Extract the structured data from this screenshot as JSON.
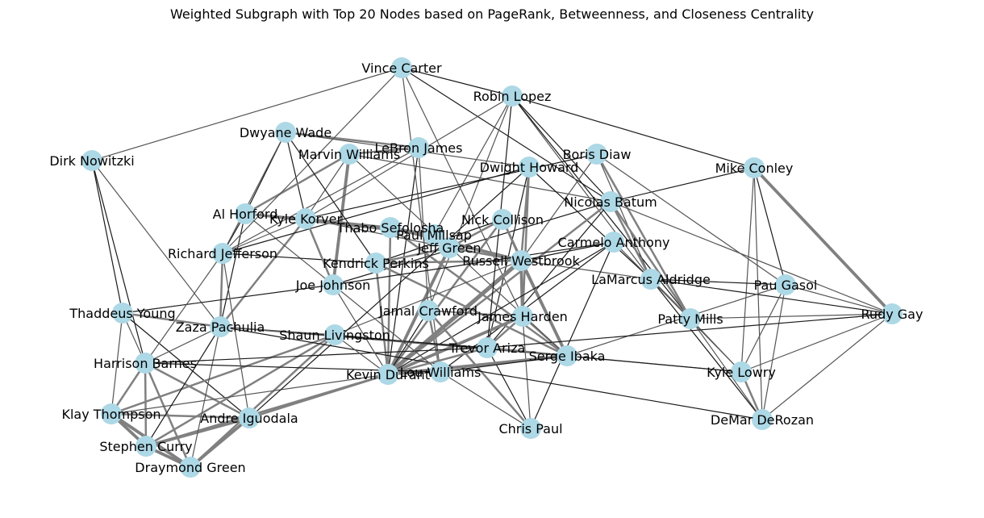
{
  "title": "Weighted Subgraph with Top 20 Nodes based on PageRank, Betweenness, and Closeness Centrality",
  "colors": {
    "node": "#add8e6",
    "edge_dark": "#1a1a1a",
    "edge_mid": "#555555",
    "edge_light": "#808080",
    "text": "#000000"
  },
  "nodes": [
    {
      "id": "vince_carter",
      "label": "Vince Carter"
    },
    {
      "id": "robin_lopez",
      "label": "Robin Lopez"
    },
    {
      "id": "dwyane_wade",
      "label": "Dwyane Wade"
    },
    {
      "id": "lebron_james",
      "label": "LeBron James"
    },
    {
      "id": "marvin_williams",
      "label": "Marvin Williams"
    },
    {
      "id": "boris_diaw",
      "label": "Boris Diaw"
    },
    {
      "id": "dwight_howard",
      "label": "Dwight Howard"
    },
    {
      "id": "mike_conley",
      "label": "Mike Conley"
    },
    {
      "id": "dirk_nowitzki",
      "label": "Dirk Nowitzki"
    },
    {
      "id": "nicolas_batum",
      "label": "Nicolas Batum"
    },
    {
      "id": "al_horford",
      "label": "Al Horford"
    },
    {
      "id": "kyle_korver",
      "label": "Kyle Korver"
    },
    {
      "id": "thabo_sefolosha",
      "label": "Thabo Sefolosha"
    },
    {
      "id": "nick_collison",
      "label": "Nick Collison"
    },
    {
      "id": "paul_millsap",
      "label": "Paul Millsap"
    },
    {
      "id": "jeff_green",
      "label": "Jeff Green"
    },
    {
      "id": "carmelo_anthony",
      "label": "Carmelo Anthony"
    },
    {
      "id": "richard_jefferson",
      "label": "Richard Jefferson"
    },
    {
      "id": "kendrick_perkins",
      "label": "Kendrick Perkins"
    },
    {
      "id": "russell_westbrook",
      "label": "Russell Westbrook"
    },
    {
      "id": "lamarcus_aldridge",
      "label": "LaMarcus Aldridge"
    },
    {
      "id": "joe_johnson",
      "label": "Joe Johnson"
    },
    {
      "id": "pau_gasol",
      "label": "Pau Gasol"
    },
    {
      "id": "thaddeus_young",
      "label": "Thaddeus Young"
    },
    {
      "id": "jamal_crawford",
      "label": "Jamal Crawford"
    },
    {
      "id": "james_harden",
      "label": "James Harden"
    },
    {
      "id": "patty_mills",
      "label": "Patty Mills"
    },
    {
      "id": "rudy_gay",
      "label": "Rudy Gay"
    },
    {
      "id": "zaza_pachulia",
      "label": "Zaza Pachulia"
    },
    {
      "id": "shaun_livingston",
      "label": "Shaun Livingston"
    },
    {
      "id": "trevor_ariza",
      "label": "Trevor Ariza"
    },
    {
      "id": "harrison_barnes",
      "label": "Harrison Barnes"
    },
    {
      "id": "serge_ibaka",
      "label": "Serge Ibaka"
    },
    {
      "id": "kevin_durant",
      "label": "Kevin Durant"
    },
    {
      "id": "lou_williams",
      "label": "Lou Williams"
    },
    {
      "id": "kyle_lowry",
      "label": "Kyle Lowry"
    },
    {
      "id": "klay_thompson",
      "label": "Klay Thompson"
    },
    {
      "id": "andre_iguodala",
      "label": "Andre Iguodala"
    },
    {
      "id": "chris_paul",
      "label": "Chris Paul"
    },
    {
      "id": "demar_derozan",
      "label": "DeMar DeRozan"
    },
    {
      "id": "stephen_curry",
      "label": "Stephen Curry"
    },
    {
      "id": "draymond_green",
      "label": "Draymond Green"
    }
  ],
  "edges": [
    [
      "klay_thompson",
      "stephen_curry",
      3
    ],
    [
      "klay_thompson",
      "draymond_green",
      3
    ],
    [
      "stephen_curry",
      "draymond_green",
      3
    ],
    [
      "andre_iguodala",
      "draymond_green",
      3
    ],
    [
      "andre_iguodala",
      "stephen_curry",
      3
    ],
    [
      "andre_iguodala",
      "klay_thompson",
      2
    ],
    [
      "harrison_barnes",
      "klay_thompson",
      2
    ],
    [
      "harrison_barnes",
      "stephen_curry",
      2
    ],
    [
      "harrison_barnes",
      "draymond_green",
      2
    ],
    [
      "harrison_barnes",
      "andre_iguodala",
      2
    ],
    [
      "thaddeus_young",
      "klay_thompson",
      1
    ],
    [
      "thaddeus_young",
      "andre_iguodala",
      1
    ],
    [
      "shaun_livingston",
      "klay_thompson",
      2
    ],
    [
      "shaun_livingston",
      "stephen_curry",
      2
    ],
    [
      "shaun_livingston",
      "draymond_green",
      2
    ],
    [
      "kevin_durant",
      "andre_iguodala",
      2
    ],
    [
      "kevin_durant",
      "stephen_curry",
      2
    ],
    [
      "kevin_durant",
      "klay_thompson",
      1
    ],
    [
      "zaza_pachulia",
      "draymond_green",
      1
    ],
    [
      "zaza_pachulia",
      "stephen_curry",
      1
    ],
    [
      "zaza_pachulia",
      "richard_jefferson",
      2
    ],
    [
      "kyle_korver",
      "zaza_pachulia",
      2
    ],
    [
      "kyle_korver",
      "al_horford",
      2
    ],
    [
      "kyle_korver",
      "paul_millsap",
      2
    ],
    [
      "kyle_korver",
      "jeff_green",
      1
    ],
    [
      "kyle_korver",
      "dwyane_wade",
      1
    ],
    [
      "kyle_korver",
      "marvin_williams",
      1
    ],
    [
      "al_horford",
      "richard_jefferson",
      1
    ],
    [
      "al_horford",
      "zaza_pachulia",
      1
    ],
    [
      "al_horford",
      "joe_johnson",
      1
    ],
    [
      "marvin_williams",
      "joe_johnson",
      3
    ],
    [
      "marvin_williams",
      "al_horford",
      2
    ],
    [
      "marvin_williams",
      "lebron_james",
      2
    ],
    [
      "marvin_williams",
      "nicolas_batum",
      1
    ],
    [
      "lebron_james",
      "dwyane_wade",
      2
    ],
    [
      "lebron_james",
      "richard_jefferson",
      1
    ],
    [
      "lebron_james",
      "kevin_durant",
      1
    ],
    [
      "dwyane_wade",
      "al_horford",
      1
    ],
    [
      "dwyane_wade",
      "dwight_howard",
      1
    ],
    [
      "vince_carter",
      "dirk_nowitzki",
      1
    ],
    [
      "vince_carter",
      "robin_lopez",
      1
    ],
    [
      "vince_carter",
      "richard_jefferson",
      1
    ],
    [
      "vince_carter",
      "james_harden",
      1
    ],
    [
      "vince_carter",
      "lou_williams",
      1
    ],
    [
      "vince_carter",
      "nicolas_batum",
      1
    ],
    [
      "robin_lopez",
      "kyle_korver",
      1
    ],
    [
      "robin_lopez",
      "lamarcus_aldridge",
      1
    ],
    [
      "robin_lopez",
      "patty_mills",
      1
    ],
    [
      "robin_lopez",
      "mike_conley",
      1
    ],
    [
      "robin_lopez",
      "nicolas_batum",
      1
    ],
    [
      "robin_lopez",
      "jamal_crawford",
      1
    ],
    [
      "robin_lopez",
      "paul_millsap",
      1
    ],
    [
      "dirk_nowitzki",
      "thaddeus_young",
      1
    ],
    [
      "dirk_nowitzki",
      "zaza_pachulia",
      1
    ],
    [
      "dirk_nowitzki",
      "harrison_barnes",
      1
    ],
    [
      "boris_diaw",
      "patty_mills",
      2
    ],
    [
      "boris_diaw",
      "kyle_korver",
      1
    ],
    [
      "boris_diaw",
      "russell_westbrook",
      1
    ],
    [
      "boris_diaw",
      "lamarcus_aldridge",
      1
    ],
    [
      "dwight_howard",
      "james_harden",
      2
    ],
    [
      "dwight_howard",
      "russell_westbrook",
      2
    ],
    [
      "dwight_howard",
      "trevor_ariza",
      1
    ],
    [
      "dwight_howard",
      "richard_jefferson",
      1
    ],
    [
      "dwight_howard",
      "lamarcus_aldridge",
      1
    ],
    [
      "mike_conley",
      "rudy_gay",
      3
    ],
    [
      "mike_conley",
      "pau_gasol",
      1
    ],
    [
      "mike_conley",
      "kyle_lowry",
      1
    ],
    [
      "mike_conley",
      "demar_derozan",
      1
    ],
    [
      "mike_conley",
      "nicolas_batum",
      1
    ],
    [
      "nicolas_batum",
      "lamarcus_aldridge",
      2
    ],
    [
      "nicolas_batum",
      "patty_mills",
      2
    ],
    [
      "nicolas_batum",
      "kevin_durant",
      2
    ],
    [
      "nicolas_batum",
      "trevor_ariza",
      1
    ],
    [
      "nicolas_batum",
      "joe_johnson",
      1
    ],
    [
      "nick_collison",
      "kevin_durant",
      2
    ],
    [
      "nick_collison",
      "russell_westbrook",
      2
    ],
    [
      "nick_collison",
      "serge_ibaka",
      2
    ],
    [
      "nick_collison",
      "jeff_green",
      2
    ],
    [
      "nick_collison",
      "kendrick_perkins",
      1
    ],
    [
      "thabo_sefolosha",
      "russell_westbrook",
      3
    ],
    [
      "thabo_sefolosha",
      "kevin_durant",
      2
    ],
    [
      "thabo_sefolosha",
      "serge_ibaka",
      2
    ],
    [
      "thabo_sefolosha",
      "paul_millsap",
      2
    ],
    [
      "thabo_sefolosha",
      "kyle_korver",
      2
    ],
    [
      "paul_millsap",
      "al_horford",
      2
    ],
    [
      "paul_millsap",
      "jeff_green",
      2
    ],
    [
      "jeff_green",
      "kevin_durant",
      3
    ],
    [
      "jeff_green",
      "russell_westbrook",
      2
    ],
    [
      "jeff_green",
      "kendrick_perkins",
      2
    ],
    [
      "kendrick_perkins",
      "kevin_durant",
      2
    ],
    [
      "kendrick_perkins",
      "russell_westbrook",
      2
    ],
    [
      "kendrick_perkins",
      "serge_ibaka",
      2
    ],
    [
      "kendrick_perkins",
      "richard_jefferson",
      1
    ],
    [
      "russell_westbrook",
      "kevin_durant",
      4
    ],
    [
      "russell_westbrook",
      "serge_ibaka",
      3
    ],
    [
      "russell_westbrook",
      "james_harden",
      3
    ],
    [
      "russell_westbrook",
      "shaun_livingston",
      1
    ],
    [
      "russell_westbrook",
      "lamarcus_aldridge",
      1
    ],
    [
      "russell_westbrook",
      "carmelo_anthony",
      1
    ],
    [
      "carmelo_anthony",
      "kevin_durant",
      1
    ],
    [
      "carmelo_anthony",
      "chris_paul",
      1
    ],
    [
      "carmelo_anthony",
      "patty_mills",
      1
    ],
    [
      "carmelo_anthony",
      "lou_williams",
      1
    ],
    [
      "james_harden",
      "kevin_durant",
      3
    ],
    [
      "james_harden",
      "serge_ibaka",
      2
    ],
    [
      "james_harden",
      "trevor_ariza",
      2
    ],
    [
      "james_harden",
      "chris_paul",
      1
    ],
    [
      "james_harden",
      "jamal_crawford",
      1
    ],
    [
      "jamal_crawford",
      "lou_williams",
      2
    ],
    [
      "jamal_crawford",
      "chris_paul",
      2
    ],
    [
      "jamal_crawford",
      "kevin_durant",
      1
    ],
    [
      "lamarcus_aldridge",
      "patty_mills",
      2
    ],
    [
      "lamarcus_aldridge",
      "rudy_gay",
      1
    ],
    [
      "lamarcus_aldridge",
      "pau_gasol",
      1
    ],
    [
      "lamarcus_aldridge",
      "kyle_lowry",
      1
    ],
    [
      "lamarcus_aldridge",
      "demar_derozan",
      1
    ],
    [
      "patty_mills",
      "demar_derozan",
      1
    ],
    [
      "patty_mills",
      "rudy_gay",
      1
    ],
    [
      "patty_mills",
      "kyle_lowry",
      1
    ],
    [
      "pau_gasol",
      "rudy_gay",
      1
    ],
    [
      "pau_gasol",
      "kyle_lowry",
      1
    ],
    [
      "pau_gasol",
      "demar_derozan",
      1
    ],
    [
      "pau_gasol",
      "serge_ibaka",
      1
    ],
    [
      "rudy_gay",
      "kyle_lowry",
      1
    ],
    [
      "rudy_gay",
      "demar_derozan",
      1
    ],
    [
      "rudy_gay",
      "trevor_ariza",
      1
    ],
    [
      "kyle_lowry",
      "demar_derozan",
      2
    ],
    [
      "kyle_lowry",
      "serge_ibaka",
      1
    ],
    [
      "kyle_lowry",
      "shaun_livingston",
      1
    ],
    [
      "demar_derozan",
      "zaza_pachulia",
      1
    ],
    [
      "trevor_ariza",
      "serge_ibaka",
      2
    ],
    [
      "trevor_ariza",
      "kevin_durant",
      2
    ],
    [
      "trevor_ariza",
      "chris_paul",
      1
    ],
    [
      "trevor_ariza",
      "zaza_pachulia",
      1
    ],
    [
      "trevor_ariza",
      "harrison_barnes",
      1
    ],
    [
      "serge_ibaka",
      "kevin_durant",
      3
    ],
    [
      "serge_ibaka",
      "lou_williams",
      1
    ],
    [
      "serge_ibaka",
      "zaza_pachulia",
      1
    ],
    [
      "kevin_durant",
      "lou_williams",
      2
    ],
    [
      "kevin_durant",
      "shaun_livingston",
      1
    ],
    [
      "kevin_durant",
      "joe_johnson",
      1
    ],
    [
      "lou_williams",
      "chris_paul",
      1
    ],
    [
      "lou_williams",
      "harrison_barnes",
      1
    ],
    [
      "joe_johnson",
      "thaddeus_young",
      1
    ],
    [
      "joe_johnson",
      "kyle_korver",
      2
    ],
    [
      "joe_johnson",
      "lou_williams",
      1
    ],
    [
      "richard_jefferson",
      "kyle_korver",
      1
    ],
    [
      "richard_jefferson",
      "harrison_barnes",
      1
    ],
    [
      "richard_jefferson",
      "andre_iguodala",
      1
    ],
    [
      "shaun_livingston",
      "zaza_pachulia",
      1
    ],
    [
      "thaddeus_young",
      "zaza_pachulia",
      2
    ],
    [
      "thaddeus_young",
      "harrison_barnes",
      1
    ],
    [
      "harrison_barnes",
      "zaza_pachulia",
      1
    ],
    [
      "dwyane_wade",
      "richard_jefferson",
      1
    ],
    [
      "dwyane_wade",
      "kendrick_perkins",
      1
    ],
    [
      "lebron_james",
      "jamal_crawford",
      1
    ],
    [
      "marvin_williams",
      "serge_ibaka",
      1
    ],
    [
      "robin_lopez",
      "trevor_ariza",
      1
    ],
    [
      "boris_diaw",
      "pau_gasol",
      1
    ],
    [
      "dwight_howard",
      "andre_iguodala",
      1
    ],
    [
      "nicolas_batum",
      "rudy_gay",
      1
    ],
    [
      "carmelo_anthony",
      "joe_johnson",
      1
    ]
  ]
}
